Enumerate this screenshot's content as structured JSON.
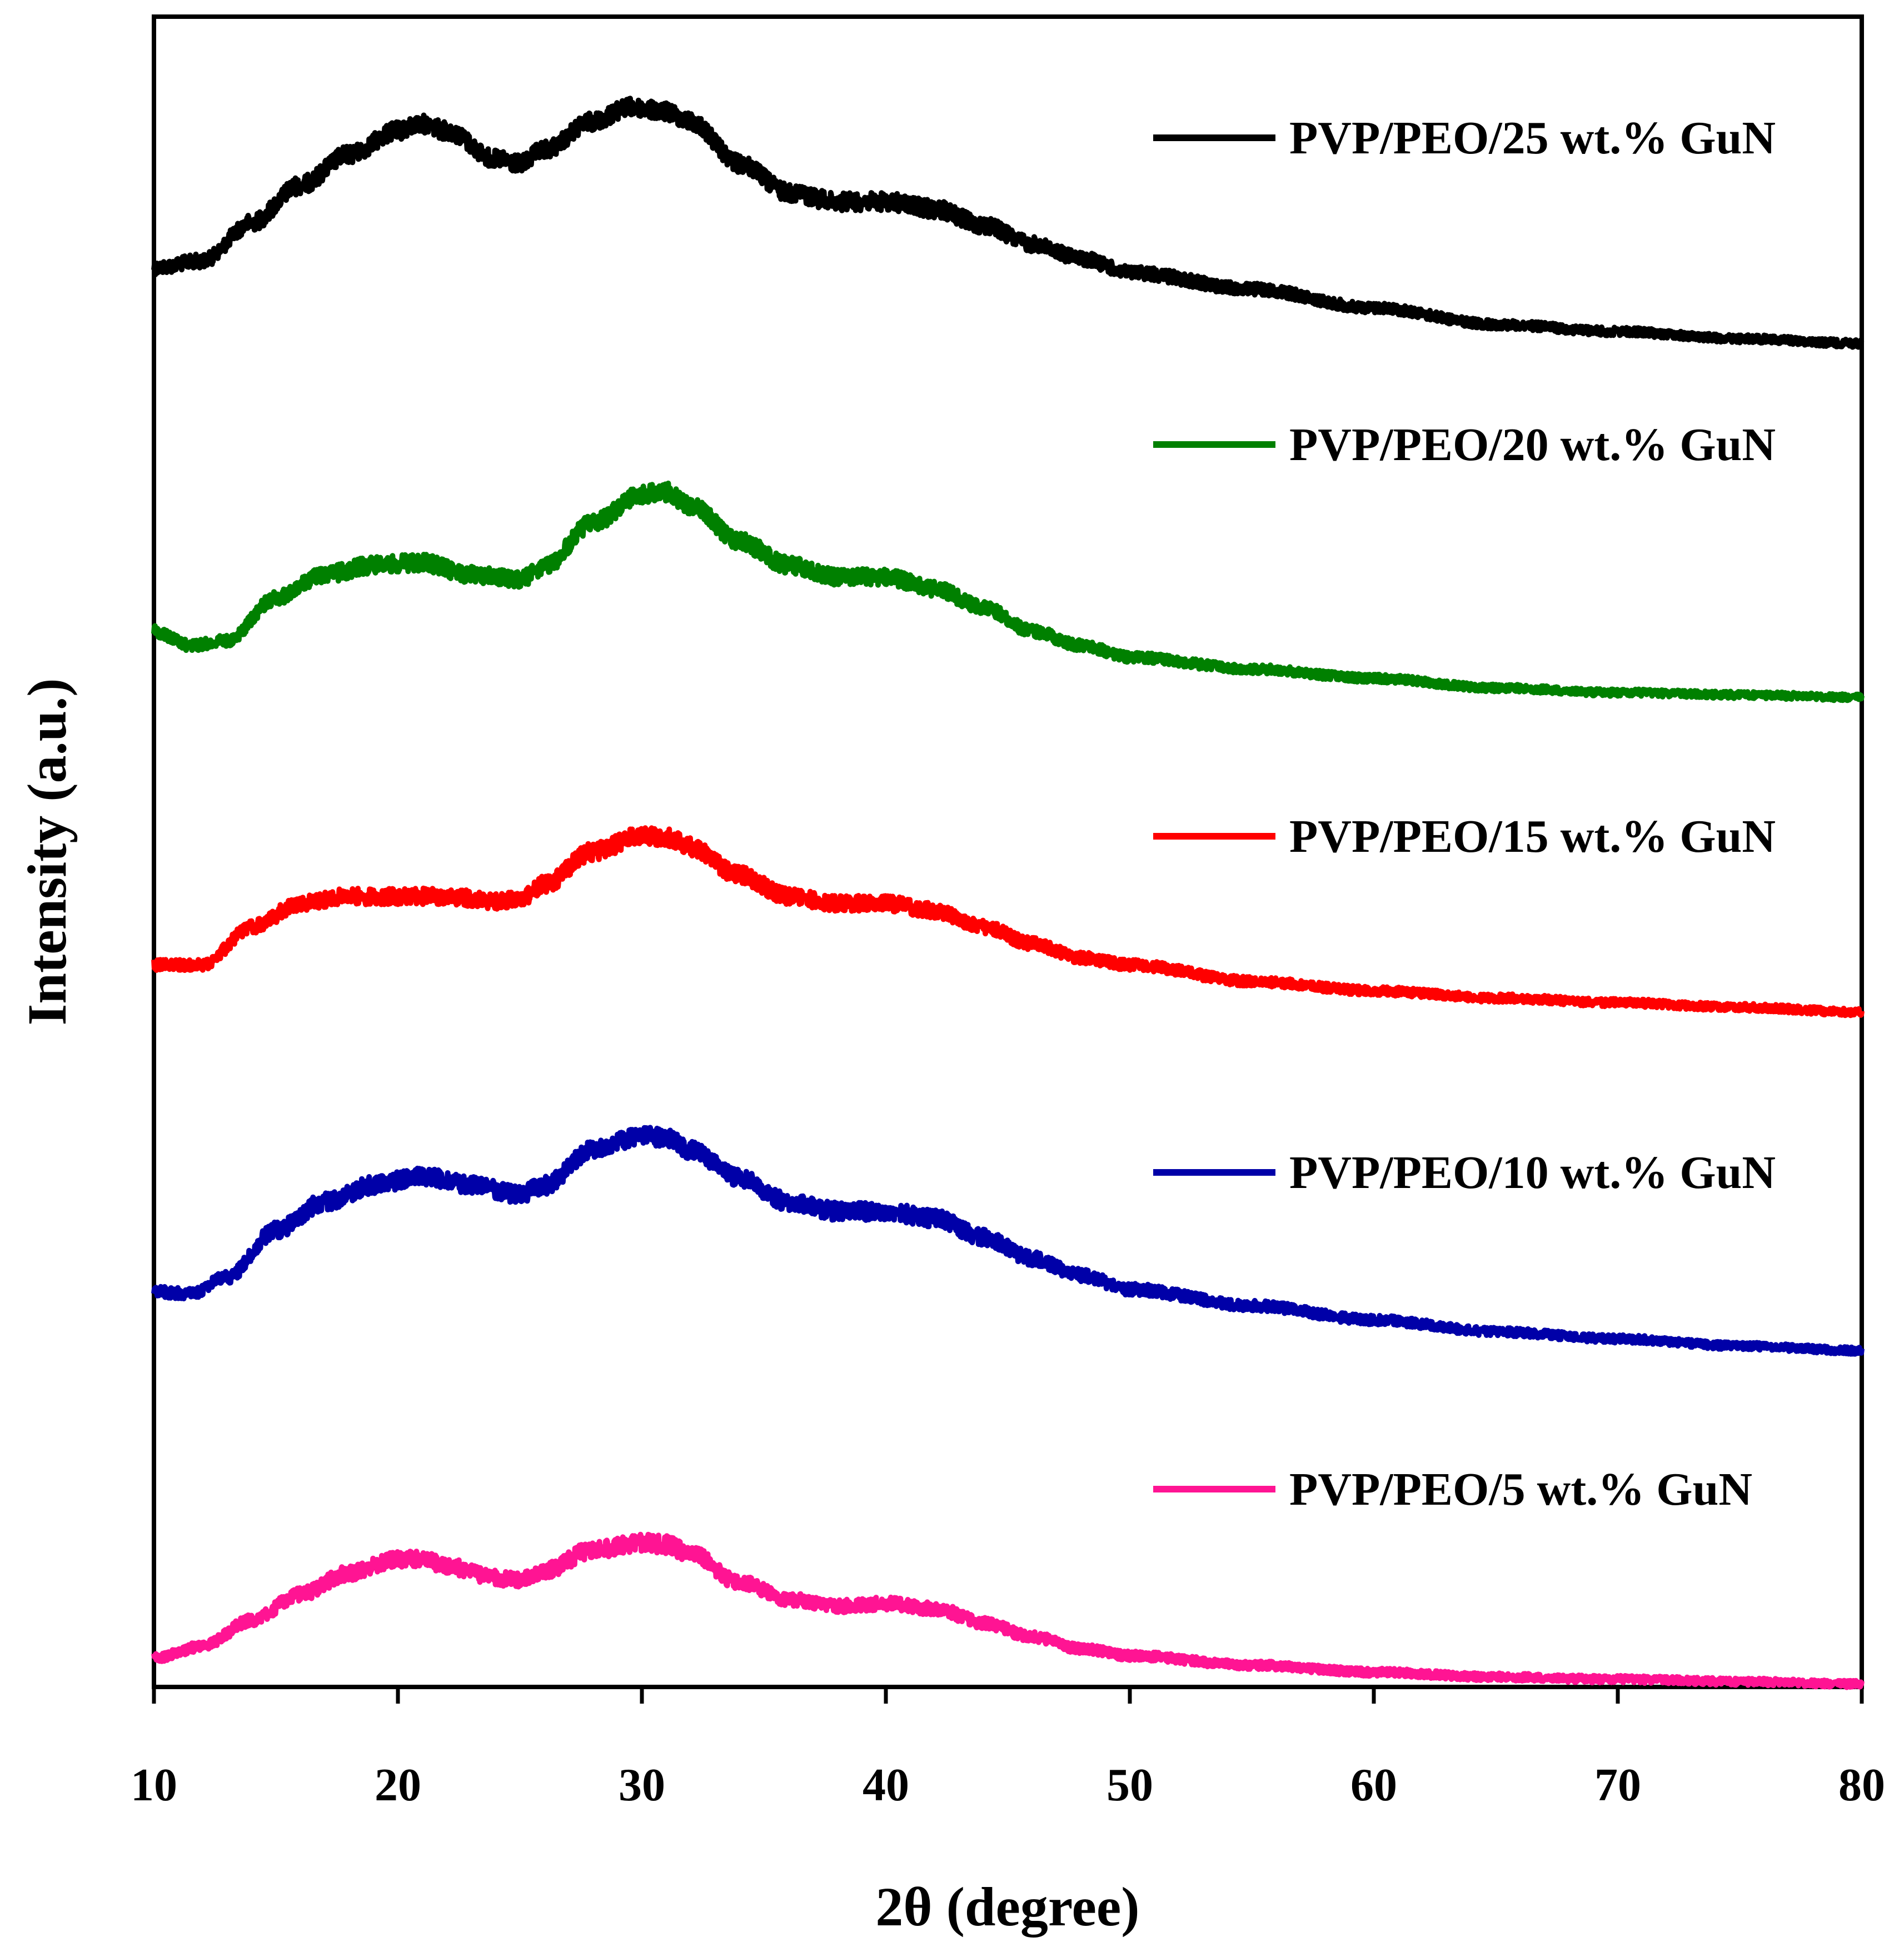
{
  "chart_data": {
    "type": "line",
    "title": "",
    "xlabel": "2θ (degree)",
    "ylabel": "Intensity (a.u.)",
    "xlim": [
      10,
      80
    ],
    "xticks": [
      10,
      20,
      30,
      40,
      50,
      60,
      70,
      80
    ],
    "ytick_labels": "none",
    "grid": false,
    "legend_placement": "right, beside each curve",
    "series": [
      {
        "name": "PVP/PEO/25 wt.% GuN",
        "color": "#000000",
        "points": [
          [
            10,
            1.8
          ],
          [
            12,
            1.95
          ],
          [
            14,
            2.75
          ],
          [
            16,
            3.55
          ],
          [
            18,
            4.2
          ],
          [
            20,
            4.7
          ],
          [
            21,
            4.85
          ],
          [
            22,
            4.7
          ],
          [
            24,
            4.1
          ],
          [
            25,
            4.0
          ],
          [
            26,
            4.3
          ],
          [
            28,
            4.9
          ],
          [
            29.5,
            5.2
          ],
          [
            31,
            5.1
          ],
          [
            32,
            4.9
          ],
          [
            34,
            4.0
          ],
          [
            36,
            3.4
          ],
          [
            38,
            3.2
          ],
          [
            40,
            3.2
          ],
          [
            42,
            3.05
          ],
          [
            44,
            2.7
          ],
          [
            46,
            2.3
          ],
          [
            48,
            2.0
          ],
          [
            50,
            1.7
          ],
          [
            55,
            1.35
          ],
          [
            60,
            0.95
          ],
          [
            65,
            0.6
          ],
          [
            70,
            0.45
          ],
          [
            75,
            0.3
          ],
          [
            80,
            0.2
          ]
        ]
      },
      {
        "name": "PVP/PEO/20 wt.% GuN",
        "color": "#008000",
        "points": [
          [
            10,
            1.4
          ],
          [
            11.5,
            1.1
          ],
          [
            13,
            1.2
          ],
          [
            15,
            2.1
          ],
          [
            17,
            2.6
          ],
          [
            19,
            2.8
          ],
          [
            21,
            2.85
          ],
          [
            23,
            2.6
          ],
          [
            25,
            2.5
          ],
          [
            26,
            2.75
          ],
          [
            28,
            3.7
          ],
          [
            30,
            4.3
          ],
          [
            31,
            4.35
          ],
          [
            32,
            4.05
          ],
          [
            34,
            3.3
          ],
          [
            36,
            2.8
          ],
          [
            38,
            2.55
          ],
          [
            40,
            2.55
          ],
          [
            42,
            2.3
          ],
          [
            44,
            1.9
          ],
          [
            46,
            1.4
          ],
          [
            48,
            1.1
          ],
          [
            50,
            0.85
          ],
          [
            55,
            0.6
          ],
          [
            60,
            0.4
          ],
          [
            65,
            0.2
          ],
          [
            70,
            0.1
          ],
          [
            75,
            0.05
          ],
          [
            80,
            0.0
          ]
        ]
      },
      {
        "name": "PVP/PEO/15 wt.% GuN",
        "color": "#ff0000",
        "points": [
          [
            10,
            1.1
          ],
          [
            12,
            1.1
          ],
          [
            14,
            1.9
          ],
          [
            16,
            2.4
          ],
          [
            18,
            2.55
          ],
          [
            20,
            2.55
          ],
          [
            22,
            2.55
          ],
          [
            24,
            2.45
          ],
          [
            25,
            2.5
          ],
          [
            26,
            2.8
          ],
          [
            28,
            3.5
          ],
          [
            30,
            3.85
          ],
          [
            31,
            3.8
          ],
          [
            32,
            3.6
          ],
          [
            34,
            3.0
          ],
          [
            36,
            2.55
          ],
          [
            38,
            2.4
          ],
          [
            40,
            2.4
          ],
          [
            42,
            2.25
          ],
          [
            44,
            1.9
          ],
          [
            46,
            1.55
          ],
          [
            48,
            1.25
          ],
          [
            50,
            1.1
          ],
          [
            55,
            0.75
          ],
          [
            60,
            0.55
          ],
          [
            65,
            0.4
          ],
          [
            70,
            0.3
          ],
          [
            75,
            0.2
          ],
          [
            80,
            0.1
          ]
        ]
      },
      {
        "name": "PVP/PEO/10 wt.% GuN",
        "color": "#0000a8",
        "points": [
          [
            10,
            1.3
          ],
          [
            11.5,
            1.25
          ],
          [
            13,
            1.6
          ],
          [
            15,
            2.6
          ],
          [
            17,
            3.2
          ],
          [
            19,
            3.55
          ],
          [
            21,
            3.75
          ],
          [
            23,
            3.55
          ],
          [
            25,
            3.35
          ],
          [
            26,
            3.55
          ],
          [
            28,
            4.3
          ],
          [
            30,
            4.6
          ],
          [
            31,
            4.55
          ],
          [
            32,
            4.3
          ],
          [
            34,
            3.7
          ],
          [
            36,
            3.2
          ],
          [
            38,
            3.0
          ],
          [
            40,
            3.0
          ],
          [
            42,
            2.85
          ],
          [
            44,
            2.45
          ],
          [
            46,
            2.0
          ],
          [
            48,
            1.65
          ],
          [
            50,
            1.35
          ],
          [
            55,
            1.0
          ],
          [
            60,
            0.7
          ],
          [
            65,
            0.45
          ],
          [
            70,
            0.3
          ],
          [
            75,
            0.15
          ],
          [
            80,
            0.05
          ]
        ]
      },
      {
        "name": "PVP/PEO/5 wt.% GuN",
        "color": "#ff1493",
        "points": [
          [
            10,
            0.6
          ],
          [
            12,
            0.85
          ],
          [
            14,
            1.4
          ],
          [
            16,
            1.95
          ],
          [
            18,
            2.4
          ],
          [
            20,
            2.7
          ],
          [
            21,
            2.7
          ],
          [
            22,
            2.55
          ],
          [
            24,
            2.3
          ],
          [
            25,
            2.25
          ],
          [
            26,
            2.45
          ],
          [
            28,
            2.9
          ],
          [
            30,
            3.05
          ],
          [
            31,
            3.0
          ],
          [
            32,
            2.8
          ],
          [
            34,
            2.2
          ],
          [
            36,
            1.85
          ],
          [
            38,
            1.7
          ],
          [
            40,
            1.75
          ],
          [
            42,
            1.65
          ],
          [
            44,
            1.35
          ],
          [
            46,
            1.05
          ],
          [
            48,
            0.8
          ],
          [
            50,
            0.65
          ],
          [
            55,
            0.45
          ],
          [
            60,
            0.3
          ],
          [
            65,
            0.2
          ],
          [
            70,
            0.15
          ],
          [
            75,
            0.1
          ],
          [
            80,
            0.05
          ]
        ]
      }
    ]
  }
}
